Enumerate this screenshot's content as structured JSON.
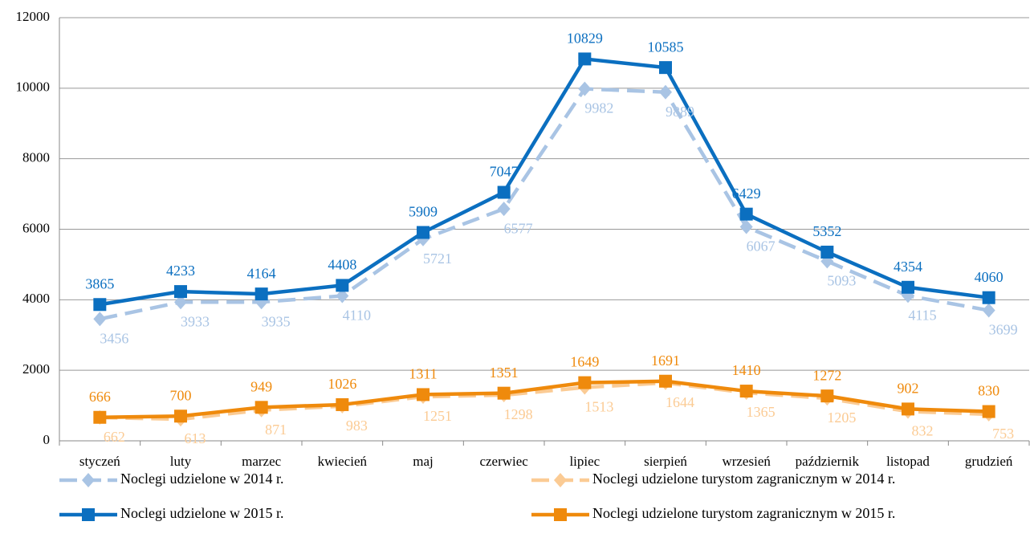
{
  "chart_data": {
    "type": "line",
    "categories": [
      "styczeń",
      "luty",
      "marzec",
      "kwiecień",
      "maj",
      "czerwiec",
      "lipiec",
      "sierpień",
      "wrzesień",
      "październik",
      "listopad",
      "grudzień"
    ],
    "series": [
      {
        "name": "Noclegi udzielone w 2014 r.",
        "color": "#a9c4e4",
        "dashed": true,
        "marker": "diamond",
        "values": [
          3456,
          3933,
          3935,
          4110,
          5721,
          6577,
          9982,
          9889,
          6067,
          5093,
          4115,
          3699
        ]
      },
      {
        "name": "Noclegi udzielone turystom zagranicznym w 2014 r.",
        "color": "#fbcb94",
        "dashed": true,
        "marker": "diamond",
        "values": [
          662,
          613,
          871,
          983,
          1251,
          1298,
          1513,
          1644,
          1365,
          1205,
          832,
          753
        ]
      },
      {
        "name": "Noclegi udzielone w 2015 r.",
        "color": "#0b6fc0",
        "dashed": false,
        "marker": "square",
        "values": [
          3865,
          4233,
          4164,
          4408,
          5909,
          7047,
          10829,
          10585,
          6429,
          5352,
          4354,
          4060
        ]
      },
      {
        "name": "Noclegi udzielone turystom zagranicznym w 2015 r.",
        "color": "#ef8a0c",
        "dashed": false,
        "marker": "square",
        "values": [
          666,
          700,
          949,
          1026,
          1311,
          1351,
          1649,
          1691,
          1410,
          1272,
          902,
          830
        ]
      }
    ],
    "ylim": [
      0,
      12000
    ],
    "yticks": [
      0,
      2000,
      4000,
      6000,
      8000,
      10000,
      12000
    ],
    "grid": true
  }
}
